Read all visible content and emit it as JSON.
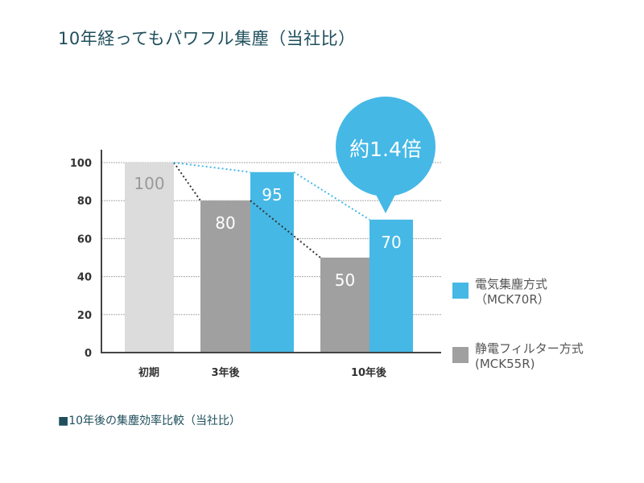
{
  "title": "10年経ってもパワフル集塵（当社比）",
  "footnote": "■10年後の集塵効率比較（当社比）",
  "chart_data": {
    "type": "bar",
    "categories": [
      "初期",
      "3年後",
      "10年後"
    ],
    "series": [
      {
        "name": "静電フィルター方式 (MCK55R)",
        "values": [
          100,
          80,
          50
        ],
        "color": "#a0a0a0"
      },
      {
        "name": "電気集塵方式 (MCK70R)",
        "values": [
          null,
          95,
          70
        ],
        "color": "#45b8e6"
      }
    ],
    "initial_color": "#dcdcdc",
    "data_labels": {
      "initial": "100",
      "gray": [
        "80",
        "50"
      ],
      "blue": [
        "95",
        "70"
      ]
    },
    "ylim": [
      0,
      100
    ],
    "yticks": [
      "0",
      "20",
      "40",
      "60",
      "80",
      "100"
    ],
    "grid": true,
    "legend_position": "right",
    "callout": "約1.4倍",
    "callout_parts": [
      "約",
      "1.4",
      "倍"
    ]
  },
  "legend": [
    {
      "line1": "電気集塵方式",
      "line2": "（MCK70R）",
      "color": "#45b8e6"
    },
    {
      "line1": "静電フィルター方式",
      "line2": "(MCK55R)",
      "color": "#a0a0a0"
    }
  ]
}
